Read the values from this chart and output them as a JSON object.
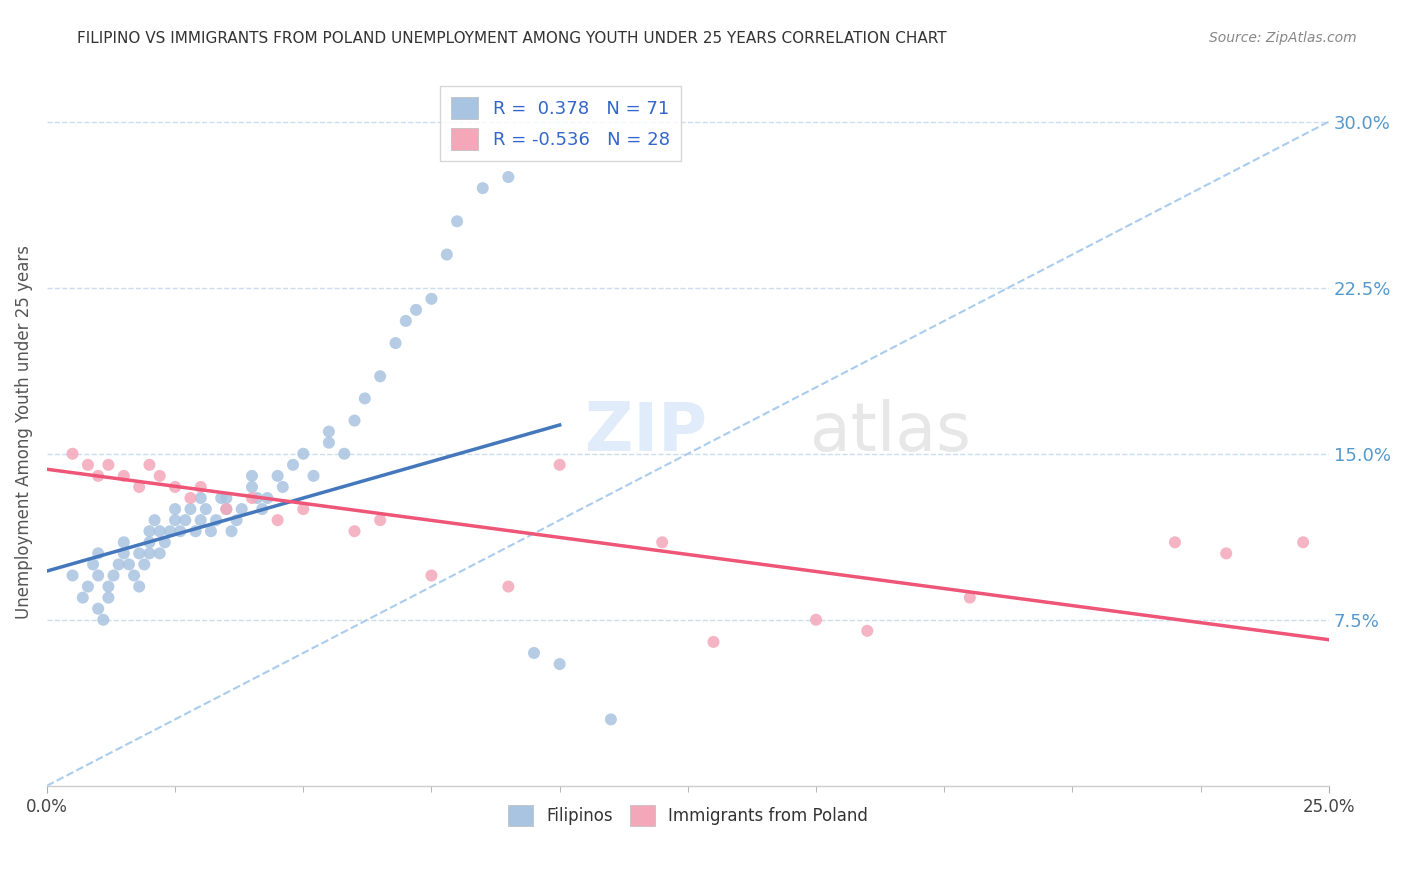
{
  "title": "FILIPINO VS IMMIGRANTS FROM POLAND UNEMPLOYMENT AMONG YOUTH UNDER 25 YEARS CORRELATION CHART",
  "source": "Source: ZipAtlas.com",
  "ylabel": "Unemployment Among Youth under 25 years",
  "yticks": [
    "7.5%",
    "15.0%",
    "22.5%",
    "30.0%"
  ],
  "ytick_vals": [
    0.075,
    0.15,
    0.225,
    0.3
  ],
  "xlim": [
    0.0,
    0.25
  ],
  "ylim": [
    0.0,
    0.32
  ],
  "r_filipino": 0.378,
  "n_filipino": 71,
  "r_poland": -0.536,
  "n_poland": 28,
  "color_filipino": "#a8c4e0",
  "color_poland": "#f4a7b9",
  "line_color_filipino": "#4477bb",
  "line_color_poland": "#ee5577",
  "dashed_line_color": "#aaccee",
  "background_color": "#ffffff",
  "filipino_x": [
    0.005,
    0.007,
    0.008,
    0.009,
    0.01,
    0.01,
    0.01,
    0.011,
    0.012,
    0.012,
    0.013,
    0.014,
    0.015,
    0.015,
    0.016,
    0.017,
    0.018,
    0.018,
    0.019,
    0.02,
    0.02,
    0.02,
    0.021,
    0.022,
    0.022,
    0.023,
    0.024,
    0.025,
    0.025,
    0.026,
    0.027,
    0.028,
    0.029,
    0.03,
    0.03,
    0.031,
    0.032,
    0.033,
    0.034,
    0.035,
    0.035,
    0.036,
    0.037,
    0.038,
    0.04,
    0.04,
    0.041,
    0.042,
    0.043,
    0.045,
    0.046,
    0.048,
    0.05,
    0.052,
    0.055,
    0.055,
    0.058,
    0.06,
    0.062,
    0.065,
    0.068,
    0.07,
    0.072,
    0.075,
    0.078,
    0.08,
    0.085,
    0.09,
    0.095,
    0.1,
    0.11
  ],
  "filipino_y": [
    0.095,
    0.085,
    0.09,
    0.1,
    0.105,
    0.095,
    0.08,
    0.075,
    0.09,
    0.085,
    0.095,
    0.1,
    0.105,
    0.11,
    0.1,
    0.095,
    0.09,
    0.105,
    0.1,
    0.11,
    0.115,
    0.105,
    0.12,
    0.115,
    0.105,
    0.11,
    0.115,
    0.12,
    0.125,
    0.115,
    0.12,
    0.125,
    0.115,
    0.13,
    0.12,
    0.125,
    0.115,
    0.12,
    0.13,
    0.13,
    0.125,
    0.115,
    0.12,
    0.125,
    0.135,
    0.14,
    0.13,
    0.125,
    0.13,
    0.14,
    0.135,
    0.145,
    0.15,
    0.14,
    0.155,
    0.16,
    0.15,
    0.165,
    0.175,
    0.185,
    0.2,
    0.21,
    0.215,
    0.22,
    0.24,
    0.255,
    0.27,
    0.275,
    0.06,
    0.055,
    0.03
  ],
  "poland_x": [
    0.005,
    0.008,
    0.01,
    0.012,
    0.015,
    0.018,
    0.02,
    0.022,
    0.025,
    0.028,
    0.03,
    0.035,
    0.04,
    0.045,
    0.05,
    0.06,
    0.065,
    0.075,
    0.09,
    0.1,
    0.12,
    0.13,
    0.15,
    0.16,
    0.18,
    0.22,
    0.23,
    0.245
  ],
  "poland_y": [
    0.15,
    0.145,
    0.14,
    0.145,
    0.14,
    0.135,
    0.145,
    0.14,
    0.135,
    0.13,
    0.135,
    0.125,
    0.13,
    0.12,
    0.125,
    0.115,
    0.12,
    0.095,
    0.09,
    0.145,
    0.11,
    0.065,
    0.075,
    0.07,
    0.085,
    0.11,
    0.105,
    0.11
  ],
  "fil_line_x0": 0.0,
  "fil_line_y0": 0.097,
  "fil_line_x1": 0.1,
  "fil_line_y1": 0.163,
  "pol_line_x0": 0.0,
  "pol_line_y0": 0.143,
  "pol_line_x1": 0.25,
  "pol_line_y1": 0.066
}
